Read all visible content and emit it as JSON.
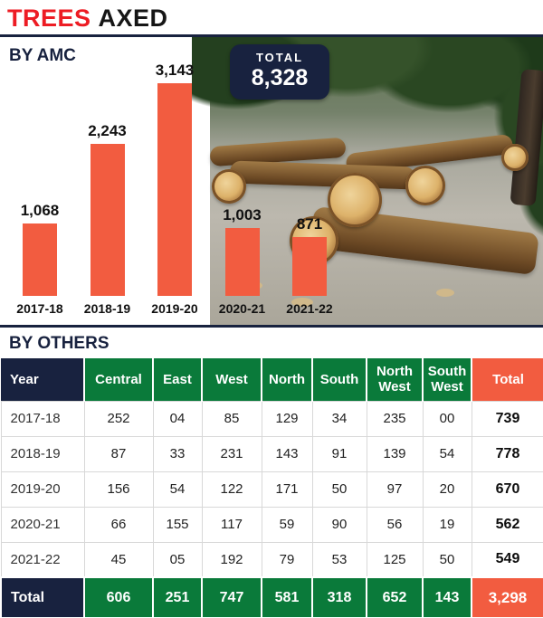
{
  "title": {
    "word1": "TREES",
    "word2": "AXED"
  },
  "colors": {
    "title_red": "#ed1c24",
    "bar_coral": "#f25c40",
    "navy": "#18223f",
    "green": "#0a7a3a"
  },
  "chart_data": [
    {
      "type": "bar",
      "title": "BY AMC",
      "categories": [
        "2017-18",
        "2018-19",
        "2019-20",
        "2020-21",
        "2021-22"
      ],
      "values": [
        1068,
        2243,
        3143,
        1003,
        871
      ],
      "value_labels": [
        "1,068",
        "2,243",
        "3,143",
        "1,003",
        "871"
      ],
      "total_label": "TOTAL",
      "total_value": "8,328",
      "ylim": [
        0,
        3143
      ],
      "legend": "none",
      "grid": false
    },
    {
      "type": "table",
      "title": "BY OTHERS",
      "columns": [
        "Year",
        "Central",
        "East",
        "West",
        "North",
        "South",
        "North West",
        "South West",
        "Total"
      ],
      "rows": [
        [
          "2017-18",
          "252",
          "04",
          "85",
          "129",
          "34",
          "235",
          "00",
          "739"
        ],
        [
          "2018-19",
          "87",
          "33",
          "231",
          "143",
          "91",
          "139",
          "54",
          "778"
        ],
        [
          "2019-20",
          "156",
          "54",
          "122",
          "171",
          "50",
          "97",
          "20",
          "670"
        ],
        [
          "2020-21",
          "66",
          "155",
          "117",
          "59",
          "90",
          "56",
          "19",
          "562"
        ],
        [
          "2021-22",
          "45",
          "05",
          "192",
          "79",
          "53",
          "125",
          "50",
          "549"
        ]
      ],
      "total_row": [
        "Total",
        "606",
        "251",
        "747",
        "581",
        "318",
        "652",
        "143",
        "3,298"
      ]
    }
  ]
}
